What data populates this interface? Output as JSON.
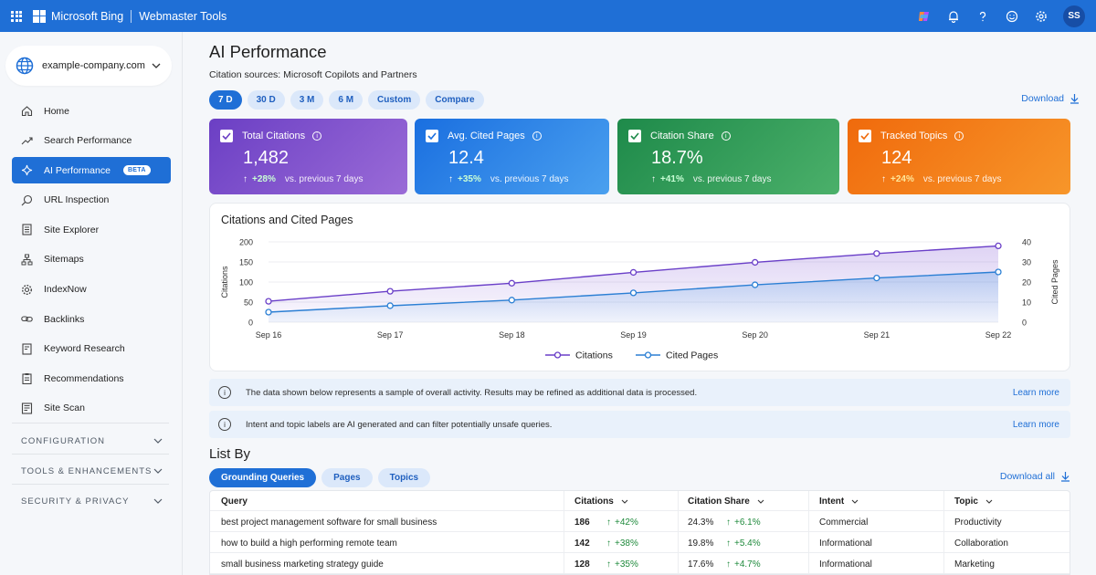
{
  "topbar": {
    "brand": "Microsoft Bing",
    "product": "Webmaster Tools",
    "avatar_initials": "SS"
  },
  "sidebar": {
    "site": "example-company.com",
    "items": [
      {
        "label": "Home",
        "icon": "home-icon"
      },
      {
        "label": "Search Performance",
        "icon": "trend-icon"
      },
      {
        "label": "AI Performance",
        "icon": "sparkle-icon",
        "badge": "BETA",
        "active": true
      },
      {
        "label": "URL Inspection",
        "icon": "search-icon"
      },
      {
        "label": "Site Explorer",
        "icon": "document-icon"
      },
      {
        "label": "Sitemaps",
        "icon": "sitemap-icon"
      },
      {
        "label": "IndexNow",
        "icon": "gear-icon"
      },
      {
        "label": "Backlinks",
        "icon": "link-icon"
      },
      {
        "label": "Keyword Research",
        "icon": "keyword-icon"
      },
      {
        "label": "Recommendations",
        "icon": "clipboard-icon"
      },
      {
        "label": "Site Scan",
        "icon": "scan-icon"
      }
    ],
    "groups": [
      "CONFIGURATION",
      "TOOLS & ENHANCEMENTS",
      "SECURITY & PRIVACY"
    ]
  },
  "main": {
    "title": "AI Performance",
    "subtitle": "Citation sources: Microsoft Copilots and Partners",
    "ranges": [
      "7 D",
      "30 D",
      "3 M",
      "6 M",
      "Custom",
      "Compare"
    ],
    "active_range": "7 D",
    "download": "Download"
  },
  "kpis": [
    {
      "label": "Total Citations",
      "value": "1,482",
      "delta": "+28%",
      "prev": "vs. previous 7 days"
    },
    {
      "label": "Avg. Cited Pages",
      "value": "12.4",
      "delta": "+35%",
      "prev": "vs. previous 7 days"
    },
    {
      "label": "Citation Share",
      "value": "18.7%",
      "delta": "+41%",
      "prev": "vs. previous 7 days"
    },
    {
      "label": "Tracked Topics",
      "value": "124",
      "delta": "+24%",
      "prev": "vs. previous 7 days"
    }
  ],
  "chart_data": {
    "type": "line",
    "title": "Citations and Cited Pages",
    "x": [
      "Sep 16",
      "Sep 17",
      "Sep 18",
      "Sep 19",
      "Sep 20",
      "Sep 21",
      "Sep 22"
    ],
    "series": [
      {
        "name": "Citations",
        "axis": "left",
        "color": "#6a3fc8",
        "values": [
          52,
          77,
          97,
          124,
          149,
          171,
          190
        ]
      },
      {
        "name": "Cited Pages",
        "axis": "right",
        "color": "#2b7fd4",
        "values": [
          5,
          8.2,
          11,
          14.6,
          18.6,
          22,
          25
        ]
      }
    ],
    "ylabel": "Citations",
    "y2label": "Cited Pages",
    "ylim": [
      0,
      200
    ],
    "y2lim": [
      0,
      40
    ],
    "yticks": [
      "200",
      "150",
      "100",
      "50",
      "0"
    ],
    "y2ticks": [
      "40",
      "30",
      "20",
      "10",
      "0"
    ],
    "legend": "bottom-center",
    "grid": true
  },
  "notices": [
    {
      "text": "The data shown below represents a sample of overall activity. Results may be refined as additional data is processed.",
      "link": "Learn more"
    },
    {
      "text": "Intent and topic labels are AI generated and can filter potentially unsafe queries.",
      "link": "Learn more"
    }
  ],
  "list": {
    "title": "List By",
    "tabs": [
      "Grounding Queries",
      "Pages",
      "Topics"
    ],
    "download_all": "Download all",
    "columns": [
      "Query",
      "Citations",
      "Citation Share",
      "Intent",
      "Topic"
    ],
    "rows": [
      {
        "query": "best project management software for small business",
        "citations": "186",
        "cit_delta": "+42%",
        "share": "24.3%",
        "share_delta": "+6.1%",
        "intent": "Commercial",
        "topic": "Productivity"
      },
      {
        "query": "how to build a high performing remote team",
        "citations": "142",
        "cit_delta": "+38%",
        "share": "19.8%",
        "share_delta": "+5.4%",
        "intent": "Informational",
        "topic": "Collaboration"
      },
      {
        "query": "small business marketing strategy guide",
        "citations": "128",
        "cit_delta": "+35%",
        "share": "17.6%",
        "share_delta": "+4.7%",
        "intent": "Informational",
        "topic": "Marketing"
      }
    ]
  }
}
